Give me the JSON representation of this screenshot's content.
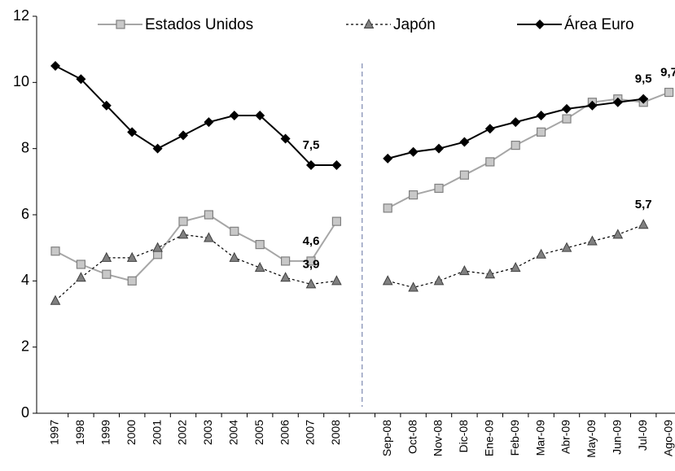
{
  "chart_data": {
    "type": "line",
    "categories": [
      "1997",
      "1998",
      "1999",
      "2000",
      "2001",
      "2002",
      "2003",
      "2004",
      "2005",
      "2006",
      "2007",
      "2008",
      null,
      "Sep-08",
      "Oct-08",
      "Nov-08",
      "Dic-08",
      "Ene-09",
      "Feb-09",
      "Mar-09",
      "Abr-09",
      "May-09",
      "Jun-09",
      "Jul-09",
      "Ago-09"
    ],
    "ylim": [
      0,
      12
    ],
    "yticks": [
      0,
      2,
      4,
      6,
      8,
      10,
      12
    ],
    "series": [
      {
        "name": "Estados Unidos",
        "color": "#a6a6a6",
        "marker": "square",
        "values": [
          4.9,
          4.5,
          4.2,
          4.0,
          4.8,
          5.8,
          6.0,
          5.5,
          5.1,
          4.6,
          4.6,
          5.8,
          null,
          6.2,
          6.6,
          6.8,
          7.2,
          7.6,
          8.1,
          8.5,
          8.9,
          9.4,
          9.5,
          9.4,
          9.7
        ],
        "value_labels": [
          null,
          null,
          null,
          null,
          null,
          null,
          null,
          null,
          null,
          null,
          "4,6",
          null,
          null,
          null,
          null,
          null,
          null,
          null,
          null,
          null,
          null,
          null,
          null,
          null,
          "9,7"
        ]
      },
      {
        "name": "Japón",
        "color": "#000000",
        "marker": "triangle",
        "dashed": true,
        "values": [
          3.4,
          4.1,
          4.7,
          4.7,
          5.0,
          5.4,
          5.3,
          4.7,
          4.4,
          4.1,
          3.9,
          4.0,
          null,
          4.0,
          3.8,
          4.0,
          4.3,
          4.2,
          4.4,
          4.8,
          5.0,
          5.2,
          5.4,
          5.7,
          null
        ],
        "value_labels": [
          null,
          null,
          null,
          null,
          null,
          null,
          null,
          null,
          null,
          null,
          "3,9",
          null,
          null,
          null,
          null,
          null,
          null,
          null,
          null,
          null,
          null,
          null,
          null,
          "5,7",
          null
        ]
      },
      {
        "name": "Área Euro",
        "color": "#000000",
        "marker": "diamond",
        "values": [
          10.5,
          10.1,
          9.3,
          8.5,
          8.0,
          8.4,
          8.8,
          9.0,
          9.0,
          8.3,
          7.5,
          7.5,
          null,
          7.7,
          7.9,
          8.0,
          8.2,
          8.6,
          8.8,
          9.0,
          9.2,
          9.3,
          9.4,
          9.5,
          null
        ],
        "value_labels": [
          null,
          null,
          null,
          null,
          null,
          null,
          null,
          null,
          null,
          null,
          "7,5",
          null,
          null,
          null,
          null,
          null,
          null,
          null,
          null,
          null,
          null,
          null,
          null,
          "9,5",
          null
        ]
      }
    ]
  }
}
